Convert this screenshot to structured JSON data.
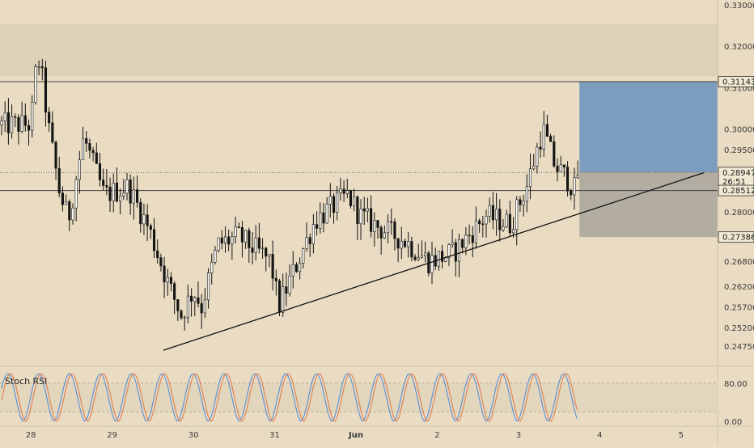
{
  "chart_data": [
    {
      "type": "candlestick",
      "title": "",
      "ylim": [
        0.243,
        0.33
      ],
      "y_ticks": [
        "0.33000",
        "0.32000",
        "0.31000",
        "0.30000",
        "0.29500",
        "0.28000",
        "0.26800",
        "0.26200",
        "0.25700",
        "0.25200",
        "0.24750"
      ],
      "y_tick_values": [
        0.33,
        0.32,
        0.31,
        0.3,
        0.295,
        0.28,
        0.268,
        0.262,
        0.257,
        0.252,
        0.2475
      ],
      "x_ticks": [
        "28",
        "29",
        "30",
        "31",
        "Jun",
        "2",
        "3",
        "4",
        "5"
      ],
      "x_tick_values": [
        0,
        1,
        2,
        3,
        4,
        5,
        6,
        7,
        8
      ],
      "x_range": [
        -0.38,
        8.45
      ],
      "price_badges": [
        {
          "label": "0.31143",
          "value": 0.31143
        },
        {
          "label": "0.28947",
          "value": 0.28947,
          "extra": "26:51"
        },
        {
          "label": "0.28512",
          "value": 0.28512
        },
        {
          "label": "0.27386",
          "value": 0.27386
        }
      ],
      "horizontal_lines": [
        0.31143,
        0.28512
      ],
      "current_price": 0.28947,
      "countdown": "26:51",
      "trendline": {
        "x": [
          1.63,
          8.28
        ],
        "y": [
          0.2465,
          0.2894
        ]
      },
      "position_tool": {
        "x_start": 6.75,
        "x_end": 8.45,
        "entry": 0.28947,
        "target": 0.31143,
        "stop": 0.27386
      },
      "candle_interval_days": 0.0417,
      "anchors": {
        "x": [
          0.0,
          0.08,
          0.14,
          0.22,
          0.35,
          0.46,
          0.65,
          0.9,
          1.2,
          1.45,
          1.7,
          1.85,
          2.0,
          2.1,
          2.3,
          2.55,
          2.95,
          3.05,
          3.2,
          3.5,
          3.9,
          4.05,
          4.3,
          4.6,
          4.9,
          5.2,
          5.6,
          5.9,
          6.1,
          6.3,
          6.45,
          6.6,
          6.7,
          6.73
        ],
        "y": [
          0.301,
          0.318,
          0.312,
          0.3,
          0.285,
          0.278,
          0.298,
          0.284,
          0.286,
          0.276,
          0.262,
          0.255,
          0.261,
          0.257,
          0.272,
          0.274,
          0.268,
          0.257,
          0.264,
          0.278,
          0.284,
          0.279,
          0.276,
          0.273,
          0.268,
          0.27,
          0.279,
          0.277,
          0.286,
          0.3,
          0.291,
          0.288,
          0.285,
          0.2895
        ]
      }
    },
    {
      "type": "line",
      "title": "Stoch RSI",
      "ylim": [
        0,
        100
      ],
      "y_ticks": [
        "80.00",
        "0.00"
      ],
      "y_tick_values": [
        80,
        0
      ],
      "band": [
        20,
        80
      ],
      "series": [
        {
          "color": "#5b8fd6",
          "period_days": 0.38,
          "phase": 0.0
        },
        {
          "color": "#e07f52",
          "period_days": 0.38,
          "phase": 0.05
        }
      ]
    }
  ],
  "colors": {
    "background": "#e9dcc2",
    "up_candle": "#ffffff",
    "down_candle": "#141414",
    "badge_bg": "#f2e9d5",
    "target_zone": "#7c9dbd",
    "stop_zone": "#b2aca1"
  }
}
